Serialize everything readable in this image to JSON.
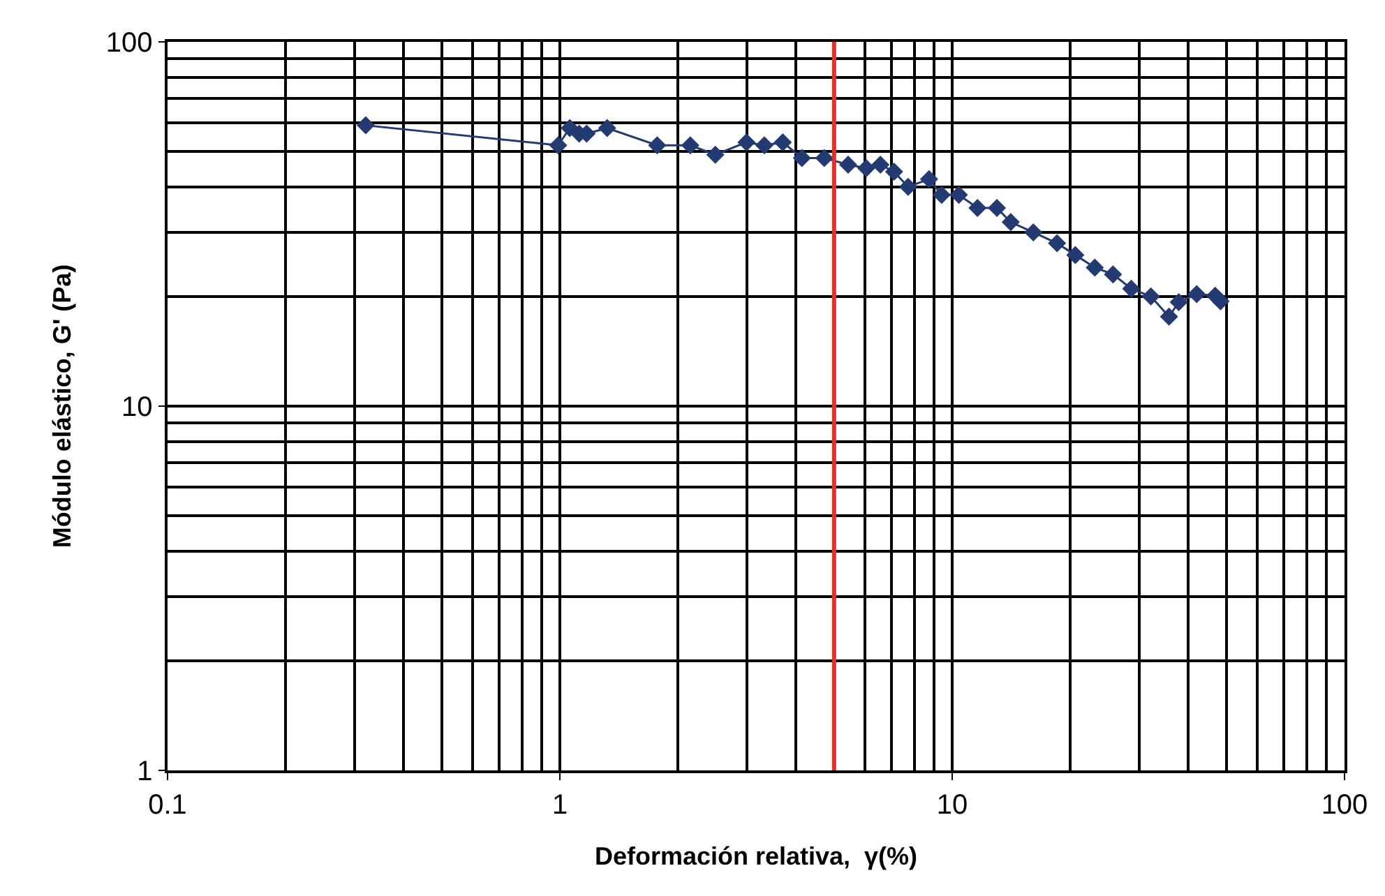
{
  "chart_data": {
    "type": "line",
    "xlabel": "Deformación relativa,  γ(%)",
    "ylabel": "Módulo elástico, G' (Pa)",
    "log": "xy",
    "grid": true,
    "marker": "diamond",
    "line_style": "solid",
    "xlim": [
      0.1,
      100
    ],
    "xticks": [
      0.1,
      1,
      10,
      100
    ],
    "ylim": [
      1,
      100
    ],
    "yticks": [
      1,
      10,
      100
    ],
    "ref_lines": [
      {
        "axis": "x",
        "value": 5,
        "label": null,
        "color": "#e0312b",
        "line_style": "solid"
      }
    ],
    "series": [
      {
        "color": "#233a72",
        "x": [
          0.32,
          0.99,
          1.06,
          1.12,
          1.17,
          1.32,
          1.77,
          2.15,
          2.49,
          2.99,
          3.32,
          3.7,
          4.14,
          4.72,
          5.43,
          6.04,
          6.56,
          7.11,
          7.72,
          8.73,
          9.4,
          10.4,
          11.6,
          13.0,
          14.1,
          16.1,
          18.5,
          20.6,
          23.1,
          25.7,
          28.6,
          32.1,
          35.7,
          37.8,
          42.0,
          46.8,
          48.3
        ],
        "values": [
          59,
          52,
          58,
          56,
          56,
          58,
          52,
          52,
          49,
          53,
          52,
          53,
          48,
          48,
          46,
          45,
          46,
          44,
          40,
          42,
          38,
          38,
          35,
          35,
          32,
          30,
          28,
          26,
          24,
          23,
          21,
          20,
          17.6,
          19.3,
          20.3,
          20.1,
          19.4
        ]
      }
    ]
  }
}
